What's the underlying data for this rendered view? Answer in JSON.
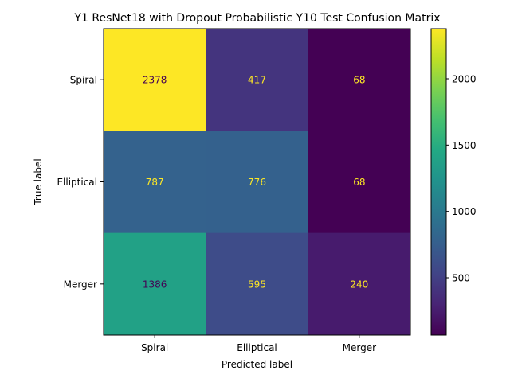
{
  "chart_data": {
    "type": "heatmap",
    "title": "Y1 ResNet18 with Dropout Probabilistic Y10 Test Confusion Matrix",
    "xlabel": "Predicted label",
    "ylabel": "True label",
    "x_categories": [
      "Spiral",
      "Elliptical",
      "Merger"
    ],
    "y_categories": [
      "Spiral",
      "Elliptical",
      "Merger"
    ],
    "values": [
      [
        2378,
        417,
        68
      ],
      [
        787,
        776,
        68
      ],
      [
        1386,
        595,
        240
      ]
    ],
    "colormap": "viridis",
    "color_range": [
      68,
      2378
    ],
    "colorbar_ticks": [
      500,
      1000,
      1500,
      2000
    ],
    "text_color_dark": "#440154",
    "text_color_light": "#fde725"
  }
}
